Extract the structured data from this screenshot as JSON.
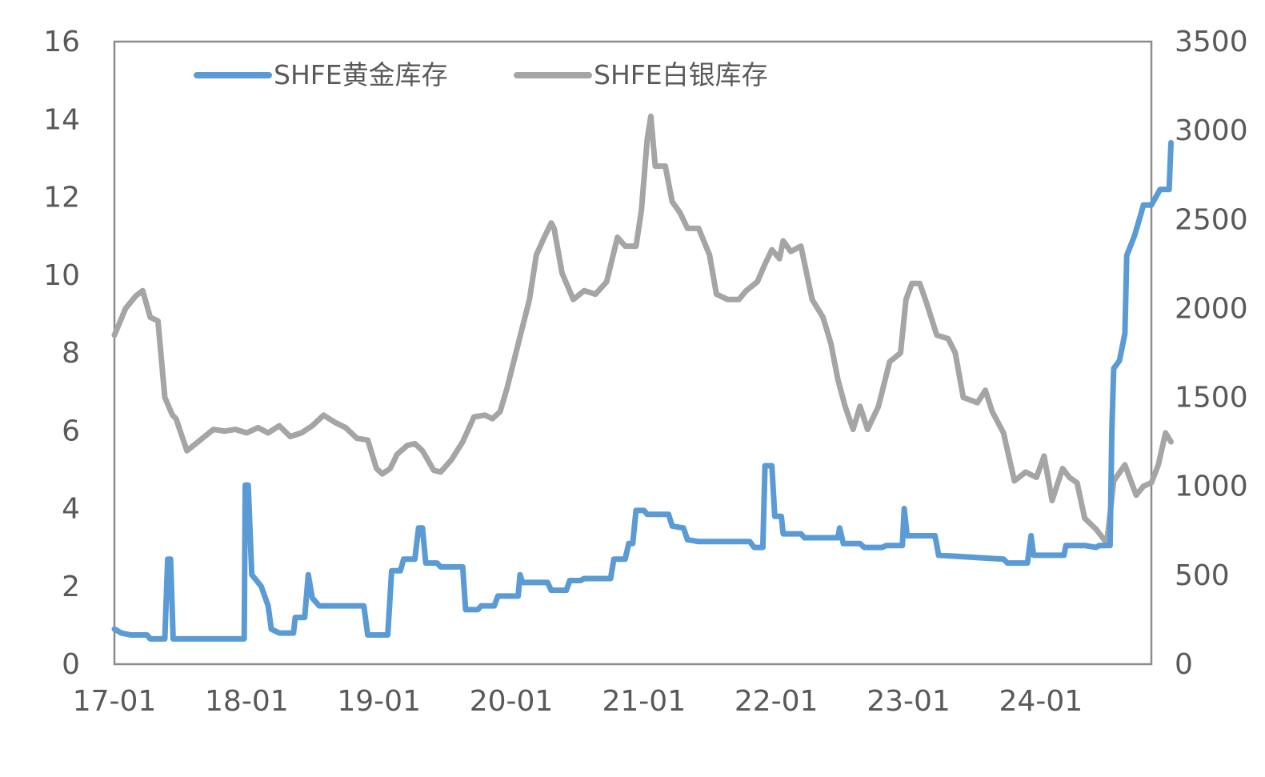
{
  "chart_data": {
    "type": "line",
    "title": "",
    "xlabel": "",
    "ylabel": "",
    "x_range": [
      "2017-01",
      "2024-11"
    ],
    "x_ticks": [
      "17-01",
      "18-01",
      "19-01",
      "20-01",
      "21-01",
      "22-01",
      "23-01",
      "24-01"
    ],
    "ylim_left": [
      0,
      16
    ],
    "yticks_left": [
      "0",
      "2",
      "4",
      "6",
      "8",
      "10",
      "12",
      "14",
      "16"
    ],
    "ylim_right": [
      0,
      3500
    ],
    "yticks_right": [
      "0",
      "500",
      "1000",
      "1500",
      "2000",
      "2500",
      "3000",
      "3500"
    ],
    "grid": false,
    "legend_position": "top-left",
    "series": [
      {
        "name": "SHFE黄金库存",
        "axis": "left",
        "color": "#5b9bd5",
        "points": [
          [
            "2017-01-01",
            0.9
          ],
          [
            "2017-01-20",
            0.8
          ],
          [
            "2017-02-15",
            0.75
          ],
          [
            "2017-04-01",
            0.75
          ],
          [
            "2017-04-10",
            0.65
          ],
          [
            "2017-05-20",
            0.65
          ],
          [
            "2017-05-28",
            2.7
          ],
          [
            "2017-06-05",
            2.7
          ],
          [
            "2017-06-12",
            0.65
          ],
          [
            "2017-12-25",
            0.65
          ],
          [
            "2017-12-28",
            4.6
          ],
          [
            "2018-01-05",
            4.6
          ],
          [
            "2018-01-15",
            2.3
          ],
          [
            "2018-02-10",
            2.0
          ],
          [
            "2018-03-01",
            1.5
          ],
          [
            "2018-03-10",
            0.9
          ],
          [
            "2018-04-01",
            0.8
          ],
          [
            "2018-05-10",
            0.8
          ],
          [
            "2018-05-15",
            1.2
          ],
          [
            "2018-06-10",
            1.2
          ],
          [
            "2018-06-20",
            2.3
          ],
          [
            "2018-07-01",
            1.7
          ],
          [
            "2018-07-20",
            1.5
          ],
          [
            "2018-11-20",
            1.5
          ],
          [
            "2018-12-01",
            0.75
          ],
          [
            "2019-01-25",
            0.75
          ],
          [
            "2019-02-05",
            2.4
          ],
          [
            "2019-03-01",
            2.4
          ],
          [
            "2019-03-10",
            2.7
          ],
          [
            "2019-04-10",
            2.7
          ],
          [
            "2019-04-20",
            3.5
          ],
          [
            "2019-05-01",
            3.5
          ],
          [
            "2019-05-10",
            2.6
          ],
          [
            "2019-06-10",
            2.6
          ],
          [
            "2019-06-20",
            2.5
          ],
          [
            "2019-08-20",
            2.5
          ],
          [
            "2019-08-28",
            1.4
          ],
          [
            "2019-10-01",
            1.4
          ],
          [
            "2019-10-10",
            1.5
          ],
          [
            "2019-11-15",
            1.5
          ],
          [
            "2019-11-25",
            1.75
          ],
          [
            "2020-01-20",
            1.75
          ],
          [
            "2020-01-25",
            2.3
          ],
          [
            "2020-02-01",
            2.1
          ],
          [
            "2020-04-10",
            2.1
          ],
          [
            "2020-04-20",
            1.9
          ],
          [
            "2020-06-01",
            1.9
          ],
          [
            "2020-06-10",
            2.15
          ],
          [
            "2020-07-10",
            2.15
          ],
          [
            "2020-07-20",
            2.2
          ],
          [
            "2020-10-01",
            2.2
          ],
          [
            "2020-10-10",
            2.7
          ],
          [
            "2020-11-10",
            2.7
          ],
          [
            "2020-11-20",
            3.1
          ],
          [
            "2020-12-01",
            3.1
          ],
          [
            "2020-12-10",
            3.95
          ],
          [
            "2021-01-01",
            3.95
          ],
          [
            "2021-01-10",
            3.85
          ],
          [
            "2021-03-10",
            3.85
          ],
          [
            "2021-03-20",
            3.55
          ],
          [
            "2021-04-20",
            3.5
          ],
          [
            "2021-05-01",
            3.2
          ],
          [
            "2021-06-01",
            3.15
          ],
          [
            "2021-10-20",
            3.15
          ],
          [
            "2021-11-01",
            3.0
          ],
          [
            "2021-11-25",
            3.0
          ],
          [
            "2021-12-01",
            5.1
          ],
          [
            "2021-12-20",
            5.1
          ],
          [
            "2021-12-28",
            3.8
          ],
          [
            "2022-01-15",
            3.8
          ],
          [
            "2022-01-20",
            3.35
          ],
          [
            "2022-03-10",
            3.35
          ],
          [
            "2022-03-20",
            3.25
          ],
          [
            "2022-06-20",
            3.25
          ],
          [
            "2022-06-25",
            3.5
          ],
          [
            "2022-07-05",
            3.1
          ],
          [
            "2022-08-20",
            3.1
          ],
          [
            "2022-09-01",
            3.0
          ],
          [
            "2022-10-20",
            3.0
          ],
          [
            "2022-11-01",
            3.05
          ],
          [
            "2022-12-15",
            3.05
          ],
          [
            "2022-12-20",
            4.0
          ],
          [
            "2022-12-28",
            3.3
          ],
          [
            "2023-03-15",
            3.3
          ],
          [
            "2023-03-25",
            2.8
          ],
          [
            "2023-09-20",
            2.7
          ],
          [
            "2023-10-01",
            2.6
          ],
          [
            "2023-11-25",
            2.6
          ],
          [
            "2023-12-05",
            3.3
          ],
          [
            "2023-12-12",
            2.8
          ],
          [
            "2024-03-05",
            2.8
          ],
          [
            "2024-03-10",
            3.05
          ],
          [
            "2024-05-01",
            3.05
          ],
          [
            "2024-06-01",
            3.0
          ],
          [
            "2024-06-10",
            3.05
          ],
          [
            "2024-07-10",
            3.05
          ],
          [
            "2024-07-15",
            6.0
          ],
          [
            "2024-07-20",
            7.6
          ],
          [
            "2024-08-05",
            7.8
          ],
          [
            "2024-08-20",
            8.5
          ],
          [
            "2024-08-25",
            10.5
          ],
          [
            "2024-09-15",
            11.0
          ],
          [
            "2024-10-01",
            11.5
          ],
          [
            "2024-10-10",
            11.8
          ],
          [
            "2024-11-01",
            11.8
          ],
          [
            "2024-11-25",
            12.2
          ],
          [
            "2024-12-20",
            12.2
          ],
          [
            "2024-12-25",
            13.4
          ]
        ]
      },
      {
        "name": "SHFE白银库存",
        "axis": "right",
        "color": "#a5a5a5",
        "points": [
          [
            "2017-01-01",
            1850
          ],
          [
            "2017-02-01",
            2000
          ],
          [
            "2017-03-01",
            2070
          ],
          [
            "2017-03-20",
            2100
          ],
          [
            "2017-04-10",
            1950
          ],
          [
            "2017-05-01",
            1930
          ],
          [
            "2017-05-20",
            1500
          ],
          [
            "2017-06-10",
            1400
          ],
          [
            "2017-06-20",
            1380
          ],
          [
            "2017-07-20",
            1200
          ],
          [
            "2017-08-20",
            1250
          ],
          [
            "2017-10-01",
            1320
          ],
          [
            "2017-11-01",
            1310
          ],
          [
            "2017-12-01",
            1320
          ],
          [
            "2018-01-01",
            1300
          ],
          [
            "2018-02-01",
            1330
          ],
          [
            "2018-03-01",
            1300
          ],
          [
            "2018-04-01",
            1340
          ],
          [
            "2018-05-01",
            1280
          ],
          [
            "2018-06-01",
            1300
          ],
          [
            "2018-07-01",
            1340
          ],
          [
            "2018-08-01",
            1400
          ],
          [
            "2018-09-01",
            1360
          ],
          [
            "2018-10-01",
            1330
          ],
          [
            "2018-11-01",
            1270
          ],
          [
            "2018-12-01",
            1260
          ],
          [
            "2018-12-25",
            1100
          ],
          [
            "2019-01-10",
            1070
          ],
          [
            "2019-02-01",
            1100
          ],
          [
            "2019-02-20",
            1180
          ],
          [
            "2019-03-20",
            1230
          ],
          [
            "2019-04-10",
            1240
          ],
          [
            "2019-05-01",
            1200
          ],
          [
            "2019-06-01",
            1090
          ],
          [
            "2019-06-20",
            1080
          ],
          [
            "2019-07-20",
            1150
          ],
          [
            "2019-08-20",
            1250
          ],
          [
            "2019-09-20",
            1390
          ],
          [
            "2019-10-20",
            1400
          ],
          [
            "2019-11-10",
            1380
          ],
          [
            "2019-12-01",
            1420
          ],
          [
            "2019-12-20",
            1550
          ],
          [
            "2020-01-20",
            1800
          ],
          [
            "2020-02-20",
            2050
          ],
          [
            "2020-03-10",
            2300
          ],
          [
            "2020-04-01",
            2400
          ],
          [
            "2020-04-20",
            2480
          ],
          [
            "2020-04-28",
            2450
          ],
          [
            "2020-05-20",
            2200
          ],
          [
            "2020-06-20",
            2050
          ],
          [
            "2020-07-20",
            2100
          ],
          [
            "2020-08-20",
            2080
          ],
          [
            "2020-09-20",
            2150
          ],
          [
            "2020-10-20",
            2400
          ],
          [
            "2020-11-10",
            2350
          ],
          [
            "2020-12-10",
            2350
          ],
          [
            "2020-12-25",
            2550
          ],
          [
            "2021-01-10",
            2950
          ],
          [
            "2021-01-20",
            3080
          ],
          [
            "2021-02-01",
            2800
          ],
          [
            "2021-03-01",
            2800
          ],
          [
            "2021-03-20",
            2600
          ],
          [
            "2021-04-10",
            2540
          ],
          [
            "2021-05-01",
            2450
          ],
          [
            "2021-06-01",
            2450
          ],
          [
            "2021-07-01",
            2300
          ],
          [
            "2021-07-20",
            2080
          ],
          [
            "2021-08-20",
            2050
          ],
          [
            "2021-09-20",
            2050
          ],
          [
            "2021-10-10",
            2100
          ],
          [
            "2021-11-10",
            2150
          ],
          [
            "2021-12-01",
            2250
          ],
          [
            "2021-12-20",
            2330
          ],
          [
            "2022-01-10",
            2280
          ],
          [
            "2022-01-20",
            2380
          ],
          [
            "2022-02-10",
            2320
          ],
          [
            "2022-03-10",
            2350
          ],
          [
            "2022-04-10",
            2050
          ],
          [
            "2022-05-10",
            1950
          ],
          [
            "2022-06-01",
            1800
          ],
          [
            "2022-06-20",
            1600
          ],
          [
            "2022-07-10",
            1450
          ],
          [
            "2022-08-01",
            1320
          ],
          [
            "2022-08-20",
            1450
          ],
          [
            "2022-09-10",
            1320
          ],
          [
            "2022-10-10",
            1450
          ],
          [
            "2022-11-10",
            1700
          ],
          [
            "2022-12-10",
            1750
          ],
          [
            "2022-12-25",
            2050
          ],
          [
            "2023-01-10",
            2140
          ],
          [
            "2023-02-01",
            2140
          ],
          [
            "2023-02-20",
            2030
          ],
          [
            "2023-03-20",
            1850
          ],
          [
            "2023-04-20",
            1830
          ],
          [
            "2023-05-10",
            1750
          ],
          [
            "2023-06-01",
            1500
          ],
          [
            "2023-07-10",
            1470
          ],
          [
            "2023-08-01",
            1540
          ],
          [
            "2023-08-20",
            1420
          ],
          [
            "2023-09-20",
            1300
          ],
          [
            "2023-10-20",
            1030
          ],
          [
            "2023-11-20",
            1080
          ],
          [
            "2023-12-20",
            1050
          ],
          [
            "2024-01-10",
            1170
          ],
          [
            "2024-02-01",
            920
          ],
          [
            "2024-03-01",
            1100
          ],
          [
            "2024-03-20",
            1050
          ],
          [
            "2024-04-10",
            1020
          ],
          [
            "2024-05-01",
            820
          ],
          [
            "2024-06-01",
            760
          ],
          [
            "2024-07-01",
            680
          ],
          [
            "2024-07-20",
            1030
          ],
          [
            "2024-08-20",
            1120
          ],
          [
            "2024-09-20",
            950
          ],
          [
            "2024-10-10",
            1000
          ],
          [
            "2024-11-01",
            1020
          ],
          [
            "2024-11-20",
            1120
          ],
          [
            "2024-12-10",
            1300
          ],
          [
            "2024-12-25",
            1250
          ]
        ]
      }
    ]
  }
}
